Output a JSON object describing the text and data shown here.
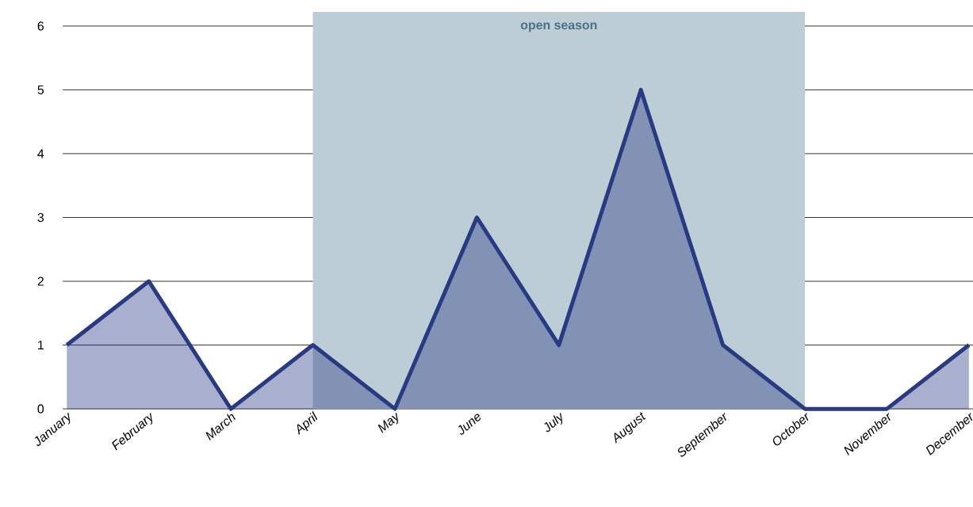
{
  "chart_data": {
    "type": "area",
    "categories": [
      "January",
      "February",
      "March",
      "April",
      "May",
      "June",
      "July",
      "August",
      "September",
      "October",
      "November",
      "December"
    ],
    "series": [
      {
        "color": "#283a82",
        "values": [
          1,
          2,
          0,
          1,
          0,
          3,
          1,
          5,
          1,
          0,
          0,
          1
        ]
      }
    ],
    "ylim": [
      0,
      6
    ],
    "yticks": [
      0,
      1,
      2,
      3,
      4,
      5,
      6
    ],
    "grid": "y",
    "bands": [
      {
        "axis": "x",
        "from": "April",
        "to": "October",
        "label": "open season",
        "color": "#bccdd6"
      }
    ]
  }
}
